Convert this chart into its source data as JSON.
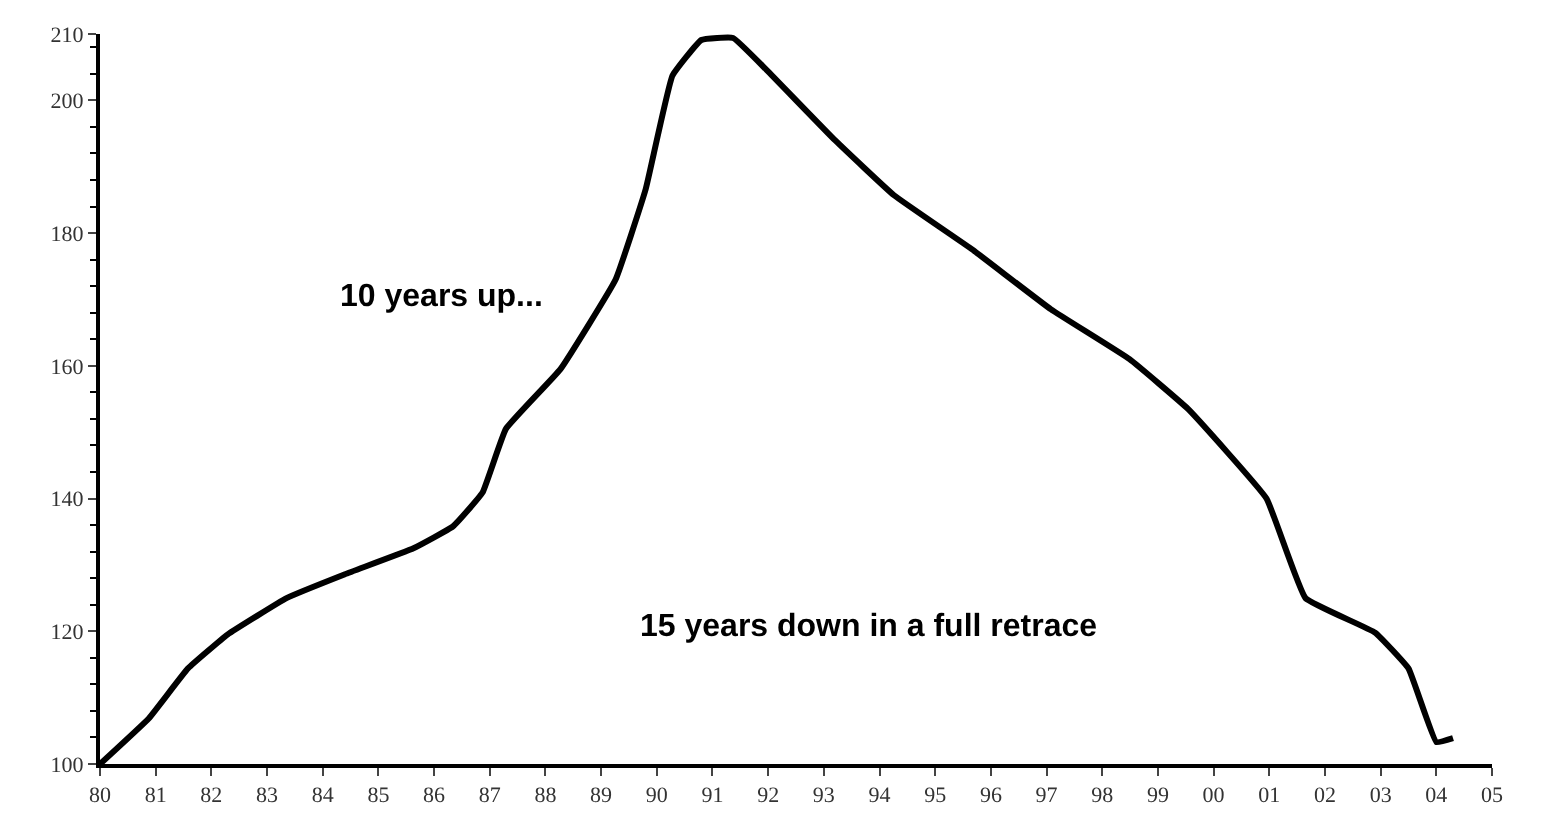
{
  "chart_data": {
    "type": "line",
    "x": [
      1980,
      1980.88,
      1981.58,
      1982.29,
      1983.35,
      1984.4,
      1985.63,
      1986.34,
      1986.87,
      1987.29,
      1988.27,
      1989.26,
      1989.8,
      1990.28,
      1990.8,
      1991.37,
      1991.97,
      1993.2,
      1994.26,
      1995.67,
      1997.08,
      1998.49,
      1999.54,
      2000.95,
      2001.65,
      2002.9,
      2003.5,
      2004.0,
      2004.3
    ],
    "series": [
      {
        "color": "#000000",
        "values": [
          100,
          106.9,
          114.4,
          119.5,
          125,
          128.6,
          132.5,
          135.8,
          140.9,
          150.5,
          159.5,
          173,
          186.6,
          203.7,
          209.1,
          209.4,
          204.6,
          194,
          185.7,
          177.5,
          168.5,
          161,
          153.5,
          140,
          125,
          119.8,
          114.4,
          103.3,
          103.9
        ]
      }
    ],
    "xlim": [
      1980,
      2005
    ],
    "xticks": [
      {
        "value": 1980,
        "label": "80"
      },
      {
        "value": 1981,
        "label": "81"
      },
      {
        "value": 1982,
        "label": "82"
      },
      {
        "value": 1983,
        "label": "83"
      },
      {
        "value": 1984,
        "label": "84"
      },
      {
        "value": 1985,
        "label": "85"
      },
      {
        "value": 1986,
        "label": "86"
      },
      {
        "value": 1987,
        "label": "87"
      },
      {
        "value": 1988,
        "label": "88"
      },
      {
        "value": 1989,
        "label": "89"
      },
      {
        "value": 1990,
        "label": "90"
      },
      {
        "value": 1991,
        "label": "91"
      },
      {
        "value": 1992,
        "label": "92"
      },
      {
        "value": 1993,
        "label": "93"
      },
      {
        "value": 1994,
        "label": "94"
      },
      {
        "value": 1995,
        "label": "95"
      },
      {
        "value": 1996,
        "label": "96"
      },
      {
        "value": 1997,
        "label": "97"
      },
      {
        "value": 1998,
        "label": "98"
      },
      {
        "value": 1999,
        "label": "99"
      },
      {
        "value": 2000,
        "label": "00"
      },
      {
        "value": 2001,
        "label": "01"
      },
      {
        "value": 2002,
        "label": "02"
      },
      {
        "value": 2003,
        "label": "03"
      },
      {
        "value": 2004,
        "label": "04"
      },
      {
        "value": 2005,
        "label": "05"
      }
    ],
    "ylim": [
      100,
      210
    ],
    "yticks": [
      100,
      120,
      140,
      160,
      180,
      200,
      210
    ],
    "annotations": [
      "10 years up...",
      "15 years down in a full retrace"
    ],
    "marker": "none",
    "line_style": "solid"
  }
}
